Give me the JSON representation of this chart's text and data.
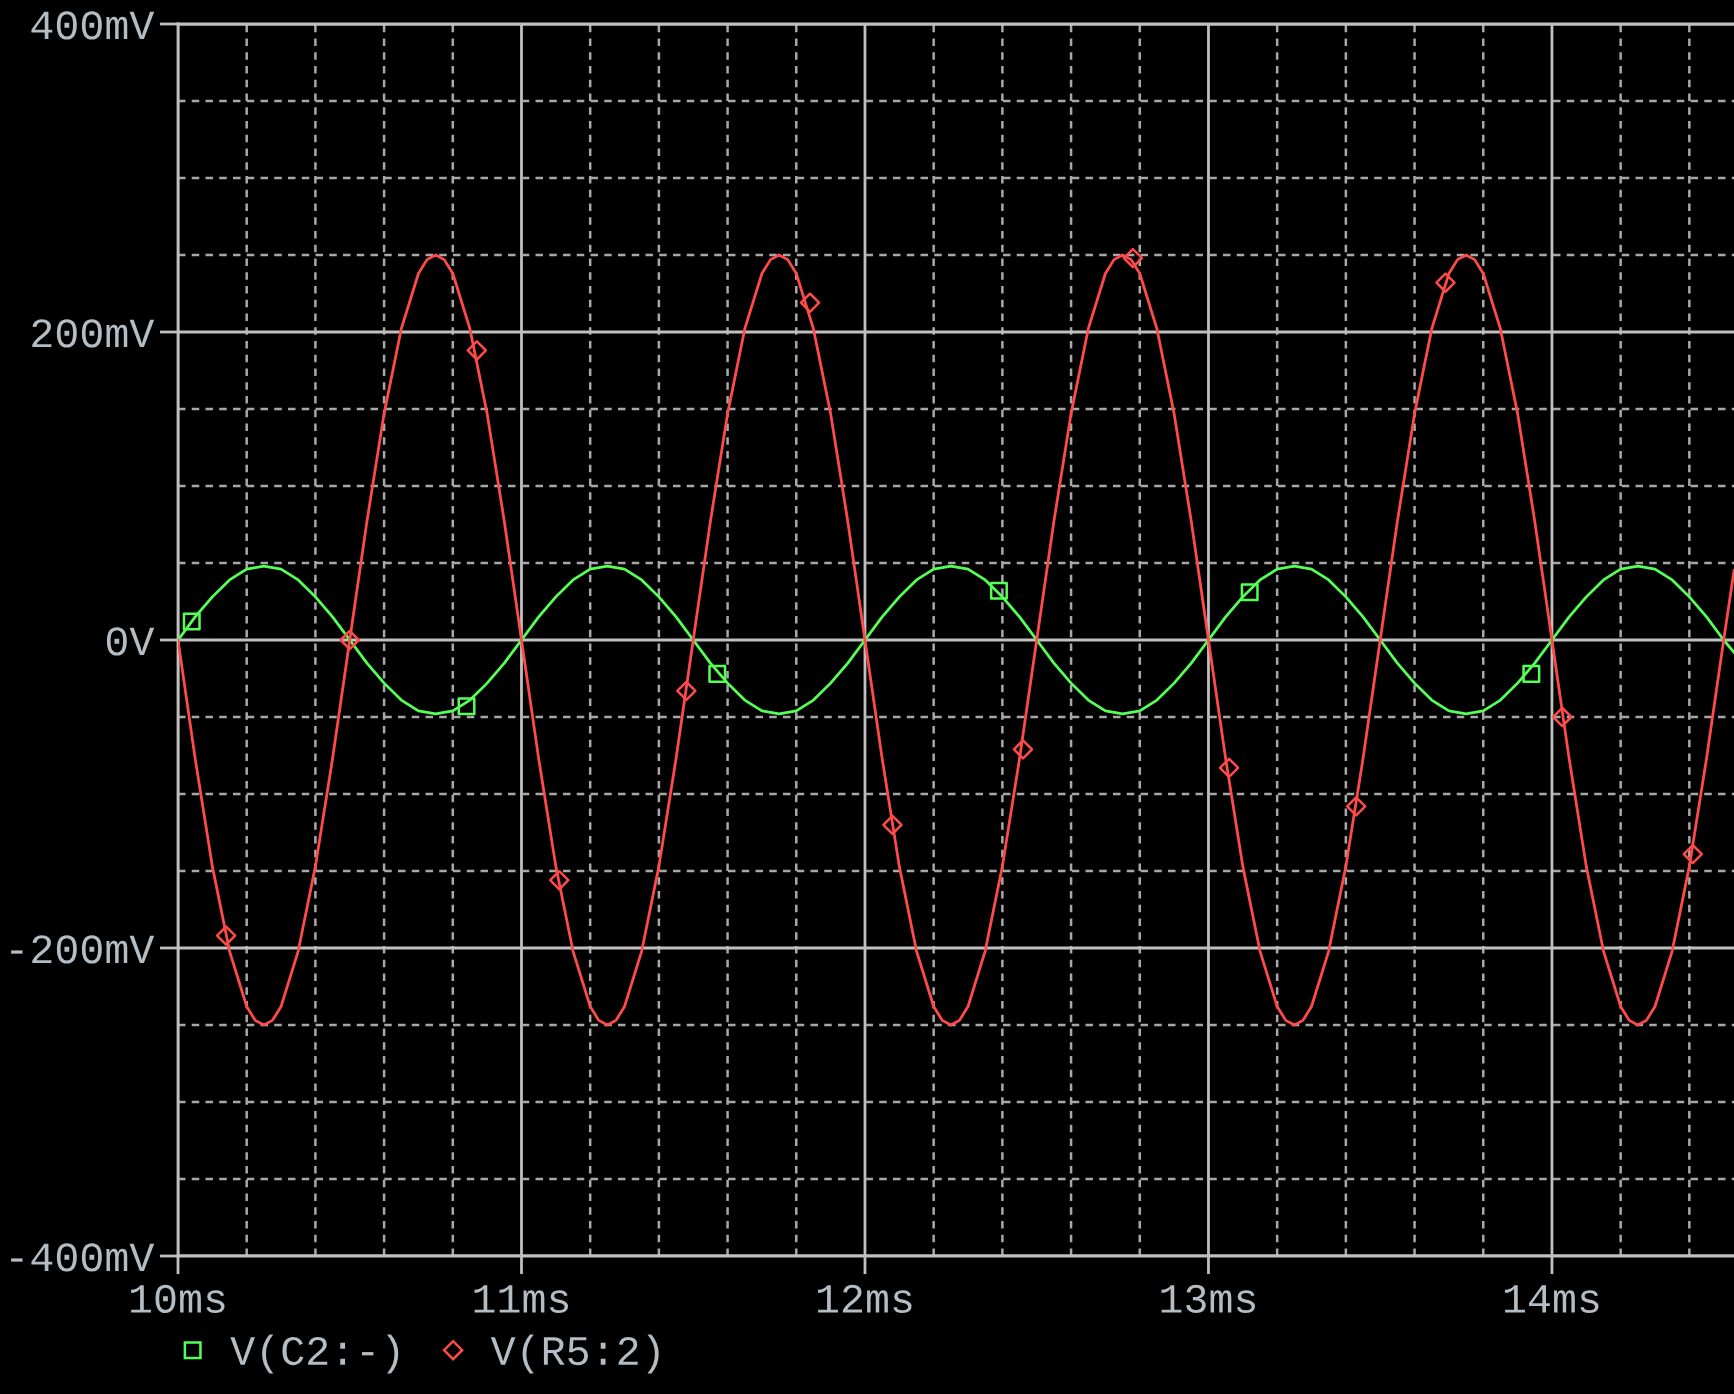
{
  "chart_data": {
    "type": "line",
    "x": [
      10,
      10.05,
      10.1,
      10.15,
      10.2,
      10.225,
      10.25,
      10.275,
      10.3,
      10.35,
      10.4,
      10.45,
      10.5,
      10.55,
      10.6,
      10.65,
      10.7,
      10.725,
      10.75,
      10.775,
      10.8,
      10.85,
      10.9,
      10.95,
      11,
      11.05,
      11.1,
      11.15,
      11.2,
      11.225,
      11.25,
      11.275,
      11.3,
      11.35,
      11.4,
      11.45,
      11.5,
      11.55,
      11.6,
      11.65,
      11.7,
      11.725,
      11.75,
      11.775,
      11.8,
      11.85,
      11.9,
      11.95,
      12,
      12.05,
      12.1,
      12.15,
      12.2,
      12.225,
      12.25,
      12.275,
      12.3,
      12.35,
      12.4,
      12.45,
      12.5,
      12.55,
      12.6,
      12.65,
      12.7,
      12.725,
      12.75,
      12.775,
      12.8,
      12.85,
      12.9,
      12.95,
      13,
      13.05,
      13.1,
      13.15,
      13.2,
      13.225,
      13.25,
      13.275,
      13.3,
      13.35,
      13.4,
      13.45,
      13.5,
      13.55,
      13.6,
      13.65,
      13.7,
      13.725,
      13.75,
      13.775,
      13.8,
      13.85,
      13.9,
      13.95,
      14,
      14.05,
      14.1,
      14.15,
      14.2,
      14.225,
      14.25,
      14.275,
      14.3,
      14.35,
      14.4,
      14.45,
      14.5,
      14.53
    ],
    "series": [
      {
        "color": "#55ff55",
        "values": [
          0,
          15,
          28,
          39,
          46,
          47,
          48,
          47,
          46,
          39,
          28,
          15,
          0,
          -15,
          -28,
          -39,
          -46,
          -47,
          -48,
          -47,
          -46,
          -39,
          -28,
          -15,
          0,
          15,
          28,
          39,
          46,
          47,
          48,
          47,
          46,
          39,
          28,
          15,
          0,
          -15,
          -28,
          -39,
          -46,
          -47,
          -48,
          -47,
          -46,
          -39,
          -28,
          -15,
          0,
          15,
          28,
          39,
          46,
          47,
          48,
          47,
          46,
          39,
          28,
          15,
          0,
          -15,
          -28,
          -39,
          -46,
          -47,
          -48,
          -47,
          -46,
          -39,
          -28,
          -15,
          0,
          15,
          28,
          39,
          46,
          47,
          48,
          47,
          46,
          39,
          28,
          15,
          0,
          -15,
          -28,
          -39,
          -46,
          -47,
          -48,
          -47,
          -46,
          -39,
          -28,
          -15,
          0,
          15,
          28,
          39,
          46,
          47,
          48,
          47,
          46,
          39,
          28,
          15,
          0,
          -8
        ]
      },
      {
        "color": "#ff4a4a",
        "values": [
          0,
          -77,
          -147,
          -202,
          -238,
          -247,
          -250,
          -247,
          -238,
          -202,
          -147,
          -77,
          0,
          77,
          147,
          202,
          238,
          247,
          250,
          247,
          238,
          202,
          147,
          77,
          0,
          -77,
          -147,
          -202,
          -238,
          -247,
          -250,
          -247,
          -238,
          -202,
          -147,
          -77,
          0,
          77,
          147,
          202,
          238,
          247,
          250,
          247,
          238,
          202,
          147,
          77,
          0,
          -77,
          -147,
          -202,
          -238,
          -247,
          -250,
          -247,
          -238,
          -202,
          -147,
          -77,
          0,
          77,
          147,
          202,
          238,
          247,
          250,
          247,
          238,
          202,
          147,
          77,
          0,
          -77,
          -147,
          -202,
          -238,
          -247,
          -250,
          -247,
          -238,
          -202,
          -147,
          -77,
          0,
          77,
          147,
          202,
          238,
          247,
          250,
          247,
          238,
          202,
          147,
          77,
          0,
          -77,
          -147,
          -202,
          -238,
          -247,
          -250,
          -247,
          -238,
          -202,
          -147,
          -77,
          0,
          45
        ]
      },
      {
        "type": "scatter",
        "name": "V(C2:-)",
        "color": "#55ff55",
        "marker": "square",
        "x": [
          10.04,
          10.84,
          11.57,
          12.39,
          13.12,
          13.94
        ],
        "values": [
          12,
          -43,
          -22,
          32,
          31,
          -22
        ]
      },
      {
        "type": "scatter",
        "name": "V(R5:2)",
        "color": "#ff4a4a",
        "marker": "diamond",
        "x": [
          10.14,
          10.5,
          10.87,
          11.11,
          11.48,
          11.84,
          12.08,
          12.46,
          12.78,
          13.06,
          13.43,
          13.69,
          14.03,
          14.41
        ],
        "values": [
          -192,
          0,
          188,
          -156,
          -33,
          219,
          -120,
          -71,
          248,
          -83,
          -108,
          232,
          -50,
          -139
        ]
      }
    ],
    "xlim": [
      10,
      14.53
    ],
    "xticks": [
      {
        "value": 10,
        "label": "10ms"
      },
      {
        "value": 10.2,
        "label": null
      },
      {
        "value": 10.4,
        "label": null
      },
      {
        "value": 10.6,
        "label": null
      },
      {
        "value": 10.8,
        "label": null
      },
      {
        "value": 11,
        "label": "11ms"
      },
      {
        "value": 11.2,
        "label": null
      },
      {
        "value": 11.4,
        "label": null
      },
      {
        "value": 11.6,
        "label": null
      },
      {
        "value": 11.8,
        "label": null
      },
      {
        "value": 12,
        "label": "12ms"
      },
      {
        "value": 12.2,
        "label": null
      },
      {
        "value": 12.4,
        "label": null
      },
      {
        "value": 12.6,
        "label": null
      },
      {
        "value": 12.8,
        "label": null
      },
      {
        "value": 13,
        "label": "13ms"
      },
      {
        "value": 13.2,
        "label": null
      },
      {
        "value": 13.4,
        "label": null
      },
      {
        "value": 13.6,
        "label": null
      },
      {
        "value": 13.8,
        "label": null
      },
      {
        "value": 14,
        "label": "14ms"
      },
      {
        "value": 14.2,
        "label": null
      },
      {
        "value": 14.4,
        "label": null
      }
    ],
    "ylim": [
      -400,
      400
    ],
    "yticks": [
      {
        "value": -400,
        "label": "-400mV"
      },
      {
        "value": -350,
        "label": null
      },
      {
        "value": -300,
        "label": null
      },
      {
        "value": -250,
        "label": null
      },
      {
        "value": -200,
        "label": "-200mV"
      },
      {
        "value": -150,
        "label": null
      },
      {
        "value": -100,
        "label": null
      },
      {
        "value": -50,
        "label": null
      },
      {
        "value": 0,
        "label": "0V"
      },
      {
        "value": 50,
        "label": null
      },
      {
        "value": 100,
        "label": null
      },
      {
        "value": 150,
        "label": null
      },
      {
        "value": 200,
        "label": "200mV"
      },
      {
        "value": 250,
        "label": null
      },
      {
        "value": 300,
        "label": null
      },
      {
        "value": 350,
        "label": null
      },
      {
        "value": 400,
        "label": "400mV"
      }
    ],
    "grid": true,
    "legend": "bottom left",
    "line_style": "solid"
  }
}
